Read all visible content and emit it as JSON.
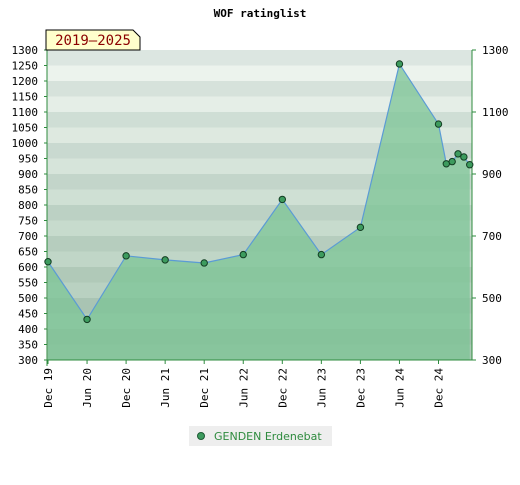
{
  "chart_data": {
    "type": "area",
    "title": "WOF ratinglist",
    "range_label": "2019–2025",
    "ylim": [
      300,
      1300
    ],
    "y_ticks_left": [
      300,
      350,
      400,
      450,
      500,
      550,
      600,
      650,
      700,
      750,
      800,
      850,
      900,
      950,
      1000,
      1050,
      1100,
      1150,
      1200,
      1250,
      1300
    ],
    "y_ticks_right": [
      300,
      500,
      700,
      900,
      1100,
      1300
    ],
    "x_ticks": [
      "Dec 19",
      "Jun 20",
      "Dec 20",
      "Jun 21",
      "Dec 21",
      "Jun 22",
      "Dec 22",
      "Jun 23",
      "Dec 23",
      "Jun 24",
      "Dec 24"
    ],
    "grid": true,
    "legend_position": "bottom",
    "colors": {
      "line": "#5b9bd5",
      "fill": "#7cc495",
      "marker": "#3d9b5e",
      "legend_text": "#2e8b3e",
      "range_bg": "#ffffcc",
      "range_text": "#8b0000"
    },
    "series": [
      {
        "name": "GENDEN Erdenebat",
        "x": [
          0,
          1,
          2,
          3,
          4,
          5,
          6,
          7,
          8,
          9,
          10,
          10.2,
          10.35,
          10.5,
          10.65,
          10.8
        ],
        "values": [
          617,
          431,
          636,
          623,
          613,
          640,
          818,
          640,
          728,
          1255,
          1061,
          933,
          940,
          965,
          955,
          930
        ]
      }
    ]
  }
}
